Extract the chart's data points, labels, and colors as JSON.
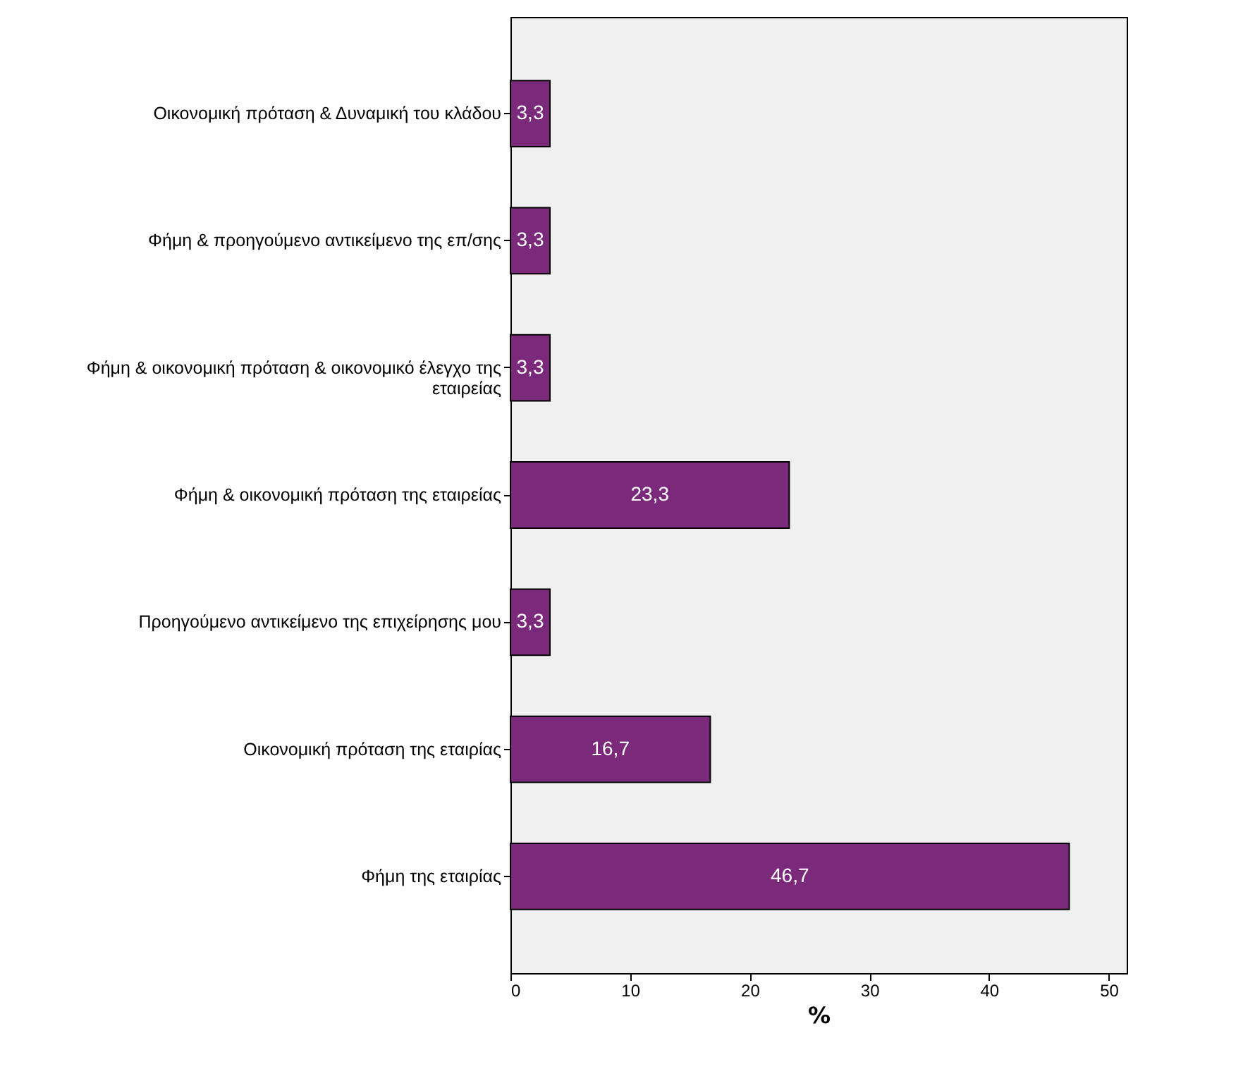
{
  "chart_data": {
    "type": "bar",
    "orientation": "horizontal",
    "xlabel": "%",
    "categories": [
      "Οικονομική πρόταση & Δυναμική του κλάδου",
      "Φήμη & προηγούμενο αντικείμενο της επ/σης",
      "Φήμη & οικονομική πρόταση & οικονομικό έλεγχο της εταιρείας",
      "Φήμη  & οικονομική πρόταση της εταιρείας",
      "Προηγούμενο αντικείμενο της επιχείρησης μου",
      "Οικονομική πρόταση της εταιρίας",
      "Φήμη της εταιρίας"
    ],
    "values": [
      3.3,
      3.3,
      3.3,
      23.3,
      3.3,
      16.7,
      46.7
    ],
    "value_labels": [
      "3,3",
      "3,3",
      "3,3",
      "23,3",
      "3,3",
      "16,7",
      "46,7"
    ],
    "color": "#7b2a7b",
    "xlim": [
      0,
      51.5
    ],
    "xticks": [
      0,
      10,
      20,
      30,
      40,
      50
    ],
    "grid": false
  }
}
